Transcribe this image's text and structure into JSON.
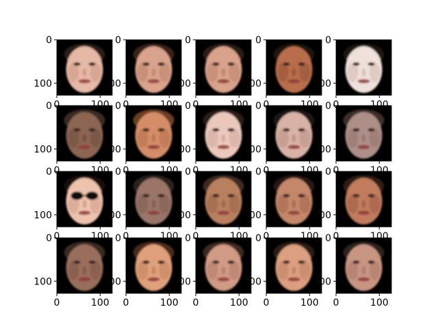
{
  "figure": {
    "rows": 4,
    "cols": 5,
    "y_tick_labels": [
      "0",
      "100"
    ],
    "x_tick_labels": [
      "0",
      "100"
    ],
    "panels": [
      {
        "skin": "#e6b8a6",
        "hair": "#2a1a12",
        "shade": "#c9957f"
      },
      {
        "skin": "#d9a38c",
        "hair": "#3a2418",
        "shade": "#b98067"
      },
      {
        "skin": "#d9a28a",
        "hair": "#2c1b14",
        "shade": "#b88066"
      },
      {
        "skin": "#b86e4c",
        "hair": "#1e120c",
        "shade": "#8f4f33"
      },
      {
        "skin": "#f0e0da",
        "hair": "#1c140f",
        "shade": "#cdb5ab"
      },
      {
        "skin": "#8d6552",
        "hair": "#3b2a20",
        "shade": "#6e4c3d"
      },
      {
        "skin": "#d48d68",
        "hair": "#6b3f24",
        "shade": "#b06d4a"
      },
      {
        "skin": "#ecc8bc",
        "hair": "#2a1d17",
        "shade": "#cda399"
      },
      {
        "skin": "#d9b2a6",
        "hair": "#1f1713",
        "shade": "#b78c80"
      },
      {
        "skin": "#ae8f88",
        "hair": "#3c2f2a",
        "shade": "#8f716a"
      },
      {
        "skin": "#eec3ae",
        "hair": "#1b110c",
        "shade": "#c99a86",
        "glasses": true
      },
      {
        "skin": "#9a7468",
        "hair": "#2c211c",
        "shade": "#7b5a50"
      },
      {
        "skin": "#b9805f",
        "hair": "#3e2c21",
        "shade": "#965f43"
      },
      {
        "skin": "#c4876a",
        "hair": "#251812",
        "shade": "#a06449"
      },
      {
        "skin": "#c07b5d",
        "hair": "#2e1c14",
        "shade": "#9c5c41"
      },
      {
        "skin": "#9a6e5c",
        "hair": "#3a2a22",
        "shade": "#7b5243"
      },
      {
        "skin": "#e0a07c",
        "hair": "#4a2c1c",
        "shade": "#bd7d5a"
      },
      {
        "skin": "#d19a84",
        "hair": "#3e2a20",
        "shade": "#b07863"
      },
      {
        "skin": "#dc9f80",
        "hair": "#2c1c14",
        "shade": "#b97d60"
      },
      {
        "skin": "#c99583",
        "hair": "#2f221c",
        "shade": "#a77463"
      }
    ]
  }
}
